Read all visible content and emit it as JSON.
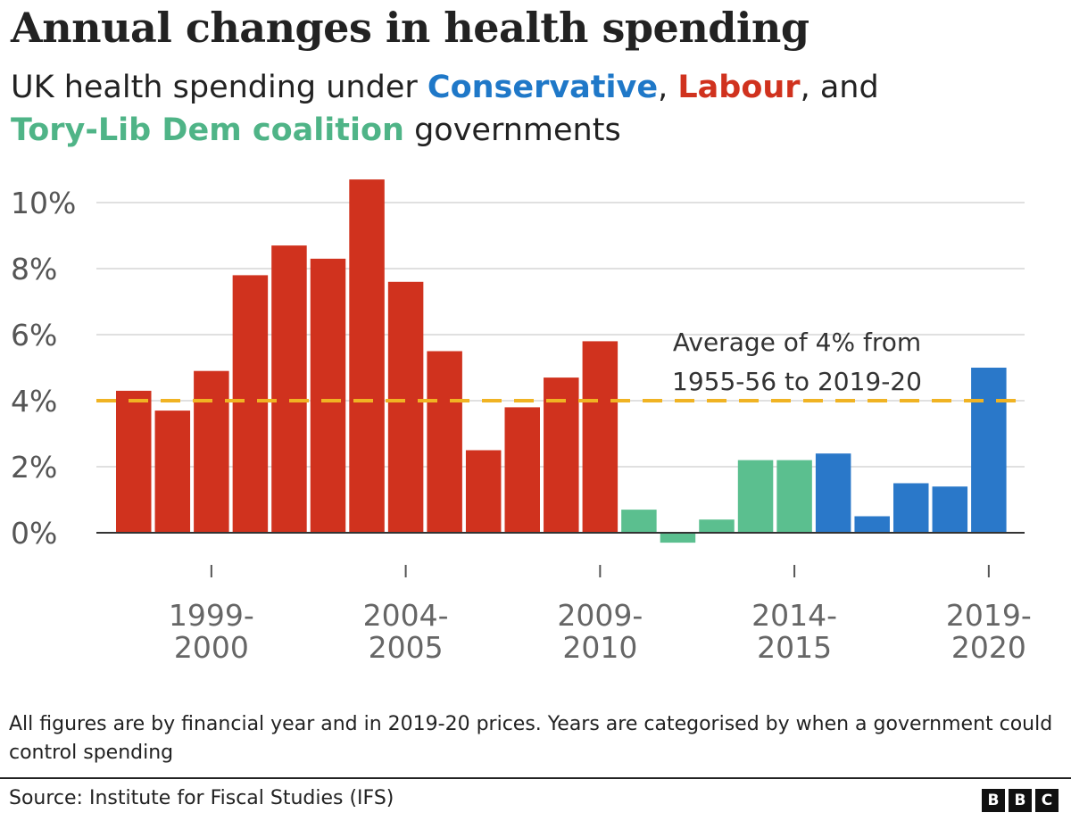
{
  "header": {
    "title": "Annual changes in health spending",
    "subtitle_prefix": "UK health spending under ",
    "conservative": "Conservative",
    "comma": ", ",
    "labour": "Labour",
    "and": ", and",
    "coalition": "Tory-Lib Dem coalition",
    "suffix": " governments"
  },
  "colors": {
    "Labour": "#d0321e",
    "Tory-Lib Dem coalition": "#5bbf8f",
    "Conservative": "#2a78c9",
    "average_line": "#f0b323"
  },
  "chart_data": {
    "type": "bar",
    "categories": [
      "1997-98",
      "1998-99",
      "1999-2000",
      "2000-01",
      "2001-02",
      "2002-03",
      "2003-04",
      "2004-05",
      "2005-06",
      "2006-07",
      "2007-08",
      "2008-09",
      "2009-10",
      "2010-11",
      "2011-12",
      "2012-13",
      "2013-14",
      "2014-15",
      "2015-16",
      "2016-17",
      "2017-18",
      "2018-19",
      "2019-20"
    ],
    "values": [
      4.3,
      3.7,
      4.9,
      7.8,
      8.7,
      8.3,
      10.7,
      7.6,
      5.5,
      2.5,
      3.8,
      4.7,
      5.8,
      0.7,
      -0.3,
      0.4,
      2.2,
      2.2,
      2.4,
      0.5,
      1.5,
      1.4,
      5.0
    ],
    "government": [
      "Labour",
      "Labour",
      "Labour",
      "Labour",
      "Labour",
      "Labour",
      "Labour",
      "Labour",
      "Labour",
      "Labour",
      "Labour",
      "Labour",
      "Labour",
      "Tory-Lib Dem coalition",
      "Tory-Lib Dem coalition",
      "Tory-Lib Dem coalition",
      "Tory-Lib Dem coalition",
      "Tory-Lib Dem coalition",
      "Conservative",
      "Conservative",
      "Conservative",
      "Conservative",
      "Conservative"
    ],
    "y_ticks": [
      "0%",
      "2%",
      "4%",
      "6%",
      "8%",
      "10%"
    ],
    "y_tick_values": [
      0,
      2,
      4,
      6,
      8,
      10
    ],
    "ylim": [
      -0.5,
      11
    ],
    "x_tick_labels": [
      {
        "category": "1999-2000",
        "line1": "1999-",
        "line2": "2000"
      },
      {
        "category": "2004-05",
        "line1": "2004-",
        "line2": "2005"
      },
      {
        "category": "2009-10",
        "line1": "2009-",
        "line2": "2010"
      },
      {
        "category": "2014-15",
        "line1": "2014-",
        "line2": "2015"
      },
      {
        "category": "2019-20",
        "line1": "2019-",
        "line2": "2020"
      }
    ],
    "average": 4,
    "annotation_line1": "Average of 4% from",
    "annotation_line2": "1955-56 to 2019-20",
    "grid": true
  },
  "footer": {
    "note": "All figures are by financial year and in 2019-20 prices. Years are categorised by when a government could control spending",
    "source": "Source: Institute for Fiscal Studies (IFS)",
    "logo": [
      "B",
      "B",
      "C"
    ]
  }
}
